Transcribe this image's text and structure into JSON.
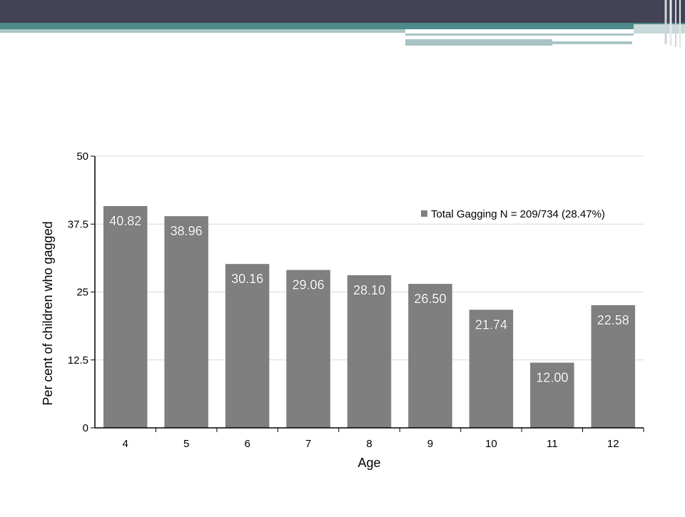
{
  "slide": {
    "colors": {
      "header_dark": "#434257",
      "teal_band": "#4e8a8a",
      "teal_light": "#a9c4c6",
      "bar_gray": "#7f7f7f"
    }
  },
  "chart_data": {
    "type": "bar",
    "categories": [
      "4",
      "5",
      "6",
      "7",
      "8",
      "9",
      "10",
      "11",
      "12"
    ],
    "series": [
      {
        "name": "Total Gagging N = 209/734 (28.47%)",
        "values": [
          40.82,
          38.96,
          30.16,
          29.06,
          28.1,
          26.5,
          21.74,
          12.0,
          22.58
        ],
        "color": "#7f7f7f"
      }
    ],
    "data_labels": [
      "40.82",
      "38.96",
      "30.16",
      "29.06",
      "28.10",
      "26.50",
      "21.74",
      "12.00",
      "22.58"
    ],
    "title": "",
    "xlabel": "Age",
    "ylabel": "Per cent of children who gagged",
    "ylim": [
      0,
      50
    ],
    "yticks": [
      0,
      12.5,
      25,
      37.5,
      50
    ],
    "ytick_labels": [
      "0",
      "12.5",
      "25",
      "37.5",
      "50"
    ],
    "grid": true,
    "legend_position": "top-right"
  }
}
